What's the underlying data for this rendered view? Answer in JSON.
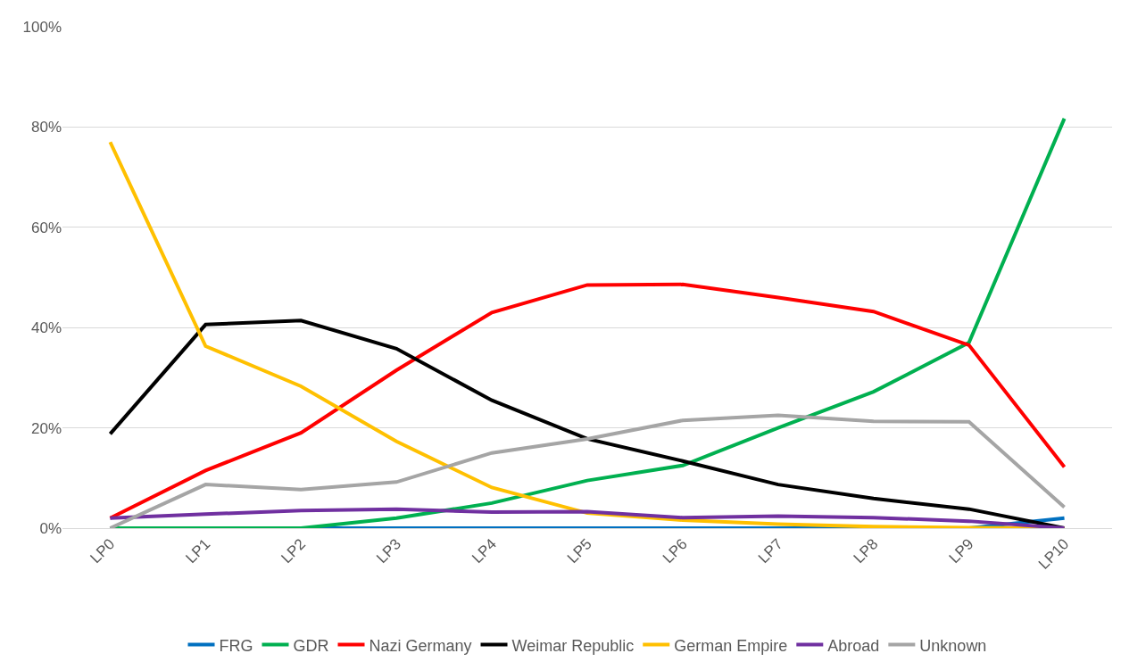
{
  "chart_data": {
    "type": "line",
    "categories": [
      "LP0",
      "LP1",
      "LP2",
      "LP3",
      "LP4",
      "LP5",
      "LP6",
      "LP7",
      "LP8",
      "LP9",
      "LP10"
    ],
    "series": [
      {
        "name": "FRG",
        "color": "#0070c0",
        "values": [
          0,
          0,
          0,
          0,
          0,
          0,
          0,
          0,
          0,
          0,
          2
        ]
      },
      {
        "name": "GDR",
        "color": "#00b050",
        "values": [
          0,
          0,
          0,
          2,
          5,
          9.5,
          12.5,
          20,
          27.2,
          37,
          81.7
        ]
      },
      {
        "name": "Nazi Germany",
        "color": "#ff0000",
        "values": [
          2,
          11.5,
          19,
          31.5,
          43,
          48.5,
          48.6,
          46,
          43.2,
          36.5,
          12.2
        ]
      },
      {
        "name": "Weimar Republic",
        "color": "#000000",
        "values": [
          18.8,
          40.6,
          41.4,
          35.8,
          25.5,
          17.8,
          13.4,
          8.7,
          5.9,
          3.8,
          0
        ]
      },
      {
        "name": "German Empire",
        "color": "#ffc000",
        "values": [
          77,
          36.3,
          28.3,
          17.3,
          8.1,
          3,
          1.6,
          0.8,
          0.3,
          0.1,
          0
        ]
      },
      {
        "name": "Abroad",
        "color": "#7030a0",
        "values": [
          2,
          2.8,
          3.5,
          3.8,
          3.2,
          3.3,
          2.1,
          2.4,
          2.1,
          1.4,
          0
        ]
      },
      {
        "name": "Unknown",
        "color": "#a5a5a5",
        "values": [
          0,
          8.7,
          7.7,
          9.2,
          15,
          17.8,
          21.5,
          22.5,
          21.3,
          21.2,
          4.2
        ]
      }
    ],
    "ylim": [
      0,
      100
    ],
    "yticks": [
      {
        "value": 0,
        "label": "0%"
      },
      {
        "value": 20,
        "label": "20%"
      },
      {
        "value": 40,
        "label": "40%"
      },
      {
        "value": 60,
        "label": "60%"
      },
      {
        "value": 80,
        "label": "80%"
      },
      {
        "value": 100,
        "label": "100%"
      }
    ],
    "grid": "y",
    "legend": "bottom",
    "marker": "none",
    "line_style": "solid"
  }
}
